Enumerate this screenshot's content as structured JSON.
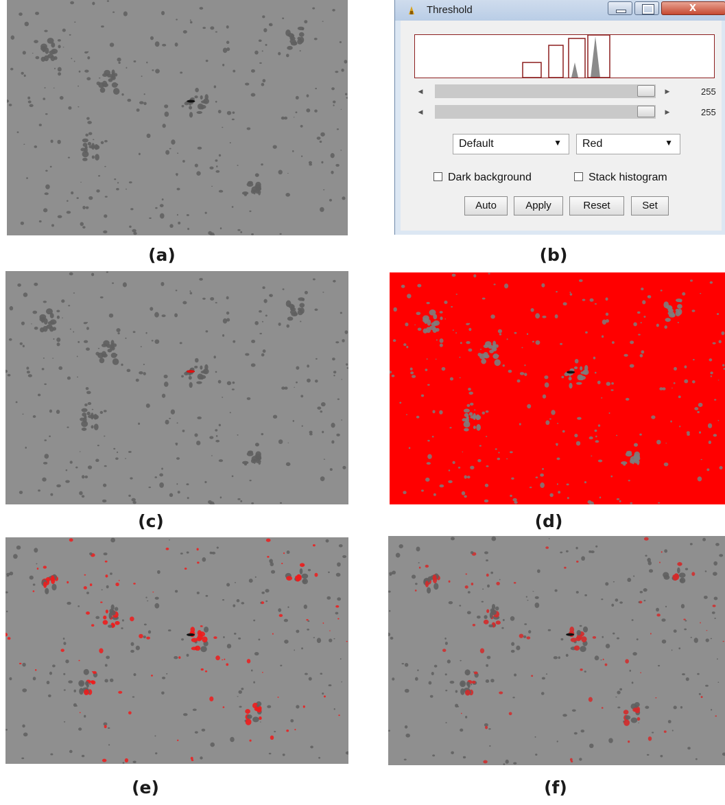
{
  "panels": {
    "a": {
      "caption": "(a)"
    },
    "b": {
      "caption": "(b)"
    },
    "c": {
      "caption": "(c)"
    },
    "d": {
      "caption": "(d)"
    },
    "e": {
      "caption": "(e)"
    },
    "f": {
      "caption": "(f)"
    }
  },
  "threshold_window": {
    "title": "Threshold",
    "slider_min_value": "255",
    "slider_max_value": "255",
    "method_select": "Default",
    "display_select": "Red",
    "dark_background_label": "Dark background",
    "stack_histogram_label": "Stack histogram",
    "buttons": {
      "auto": "Auto",
      "apply": "Apply",
      "reset": "Reset",
      "set": "Set"
    }
  },
  "colors": {
    "image_gray": "#8f8f8f",
    "threshold_red": "#ff0000",
    "histogram_border": "#8b1d1d"
  },
  "icons": [
    "app-icon",
    "minimize-icon",
    "maximize-icon",
    "close-icon",
    "chevron-down-icon",
    "arrow-left-icon",
    "arrow-right-icon"
  ]
}
